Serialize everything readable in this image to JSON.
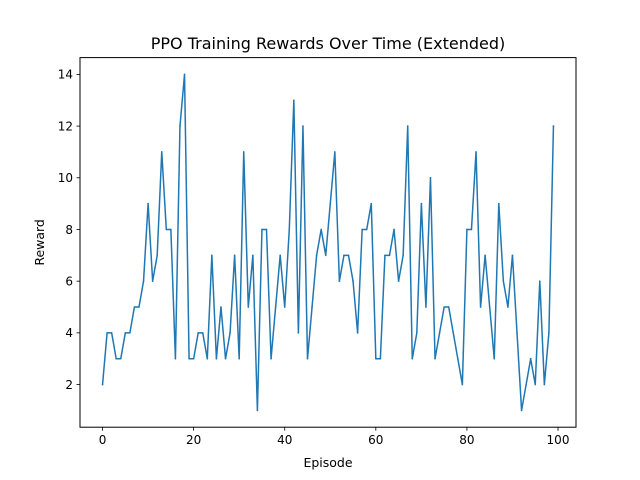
{
  "chart_data": {
    "type": "line",
    "title": "PPO Training Rewards Over Time (Extended)",
    "xlabel": "Episode",
    "ylabel": "Reward",
    "xlim": [
      -4.95,
      103.95
    ],
    "ylim": [
      0.35,
      14.65
    ],
    "xticks": [
      0,
      20,
      40,
      60,
      80,
      100
    ],
    "yticks": [
      2,
      4,
      6,
      8,
      10,
      12,
      14
    ],
    "grid": false,
    "line_color": "#1f77b4",
    "series": [
      {
        "x": [
          0,
          1,
          2,
          3,
          4,
          5,
          6,
          7,
          8,
          9,
          10,
          11,
          12,
          13,
          14,
          15,
          16,
          17,
          18,
          19,
          20,
          21,
          22,
          23,
          24,
          25,
          26,
          27,
          28,
          29,
          30,
          31,
          32,
          33,
          34,
          35,
          36,
          37,
          38,
          39,
          40,
          41,
          42,
          43,
          44,
          45,
          46,
          47,
          48,
          49,
          50,
          51,
          52,
          53,
          54,
          55,
          56,
          57,
          58,
          59,
          60,
          61,
          62,
          63,
          64,
          65,
          66,
          67,
          68,
          69,
          70,
          71,
          72,
          73,
          74,
          75,
          76,
          77,
          78,
          79,
          80,
          81,
          82,
          83,
          84,
          85,
          86,
          87,
          88,
          89,
          90,
          91,
          92,
          93,
          94,
          95,
          96,
          97,
          98,
          99
        ],
        "values": [
          2,
          4,
          4,
          3,
          3,
          4,
          4,
          5,
          5,
          6,
          9,
          6,
          7,
          11,
          8,
          8,
          3,
          12,
          14,
          3,
          3,
          4,
          4,
          3,
          7,
          3,
          5,
          3,
          4,
          7,
          3,
          11,
          5,
          7,
          1,
          8,
          8,
          3,
          5,
          7,
          5,
          8,
          13,
          4,
          12,
          3,
          5,
          7,
          8,
          7,
          9,
          11,
          6,
          7,
          7,
          6,
          4,
          8,
          8,
          9,
          3,
          3,
          7,
          7,
          8,
          6,
          7,
          12,
          3,
          4,
          9,
          5,
          10,
          3,
          4,
          5,
          5,
          4,
          3,
          2,
          8,
          8,
          11,
          5,
          7,
          5,
          3,
          9,
          6,
          5,
          7,
          4,
          1,
          2,
          3,
          2,
          6,
          2,
          4,
          12
        ]
      }
    ]
  }
}
